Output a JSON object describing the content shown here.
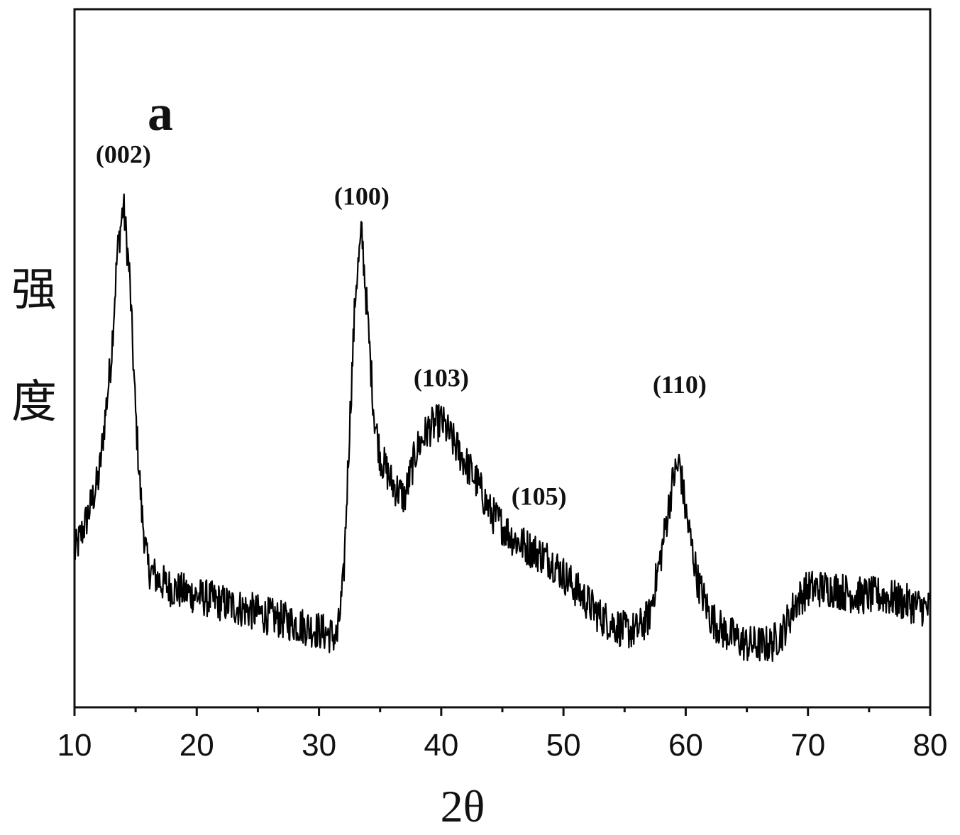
{
  "chart_data": {
    "type": "line",
    "panel_label": "a",
    "xlabel": "2θ",
    "ylabel": "强度",
    "ylabel_chars": [
      "强",
      "度"
    ],
    "xlim": [
      10,
      80
    ],
    "ylim": [
      0,
      100
    ],
    "x_ticks": [
      10,
      20,
      30,
      40,
      50,
      60,
      70,
      80
    ],
    "x_tick_labels": [
      "10",
      "20",
      "30",
      "40",
      "50",
      "60",
      "70",
      "80"
    ],
    "y_ticks_shown": false,
    "grid": false,
    "line_color": "#000000",
    "annotations": [
      {
        "text": "(002)",
        "x": 14.0,
        "y": 78
      },
      {
        "text": "(100)",
        "x": 33.5,
        "y": 72
      },
      {
        "text": "(103)",
        "x": 40.0,
        "y": 46
      },
      {
        "text": "(105)",
        "x": 48.0,
        "y": 29
      },
      {
        "text": "(110)",
        "x": 59.5,
        "y": 45
      }
    ],
    "series": [
      {
        "x": [
          10,
          11,
          12,
          13,
          13.5,
          14,
          14.5,
          15,
          15.5,
          16,
          17,
          18,
          20,
          22,
          24,
          26,
          28,
          30,
          31.5,
          32,
          32.5,
          33,
          33.5,
          34,
          34.5,
          35,
          36,
          37,
          38,
          39,
          40,
          41,
          42,
          43,
          44,
          45,
          46,
          47,
          48,
          49,
          50,
          51,
          52,
          53,
          54,
          55,
          56,
          57,
          58,
          59,
          59.5,
          60,
          61,
          62,
          63,
          64,
          65,
          66,
          67,
          68,
          69,
          70,
          72,
          74,
          76,
          78,
          80
        ],
        "y": [
          22,
          27,
          33,
          50,
          65,
          72,
          62,
          42,
          28,
          20,
          18,
          17,
          16,
          15,
          14,
          13,
          12,
          11,
          10,
          18,
          40,
          60,
          68,
          55,
          42,
          36,
          32,
          30,
          37,
          40,
          41,
          38,
          35,
          32,
          28,
          26,
          24,
          23,
          22,
          21,
          19,
          17,
          15,
          13,
          12,
          11,
          11,
          13,
          22,
          33,
          35,
          28,
          18,
          13,
          11,
          10,
          9,
          9,
          9,
          11,
          15,
          17,
          17,
          16,
          16,
          15,
          14
        ]
      }
    ]
  }
}
